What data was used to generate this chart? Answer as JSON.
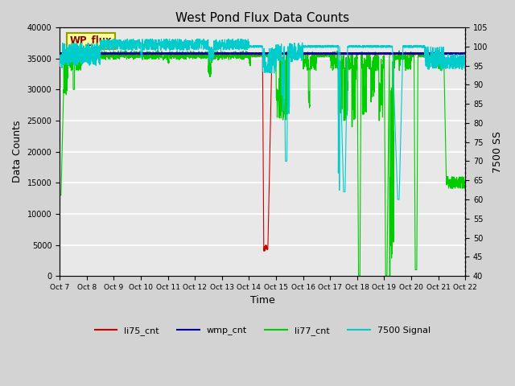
{
  "title": "West Pond Flux Data Counts",
  "xlabel": "Time",
  "ylabel_left": "Data Counts",
  "ylabel_right": "7500 SS",
  "xlim": [
    0,
    15
  ],
  "ylim_left": [
    0,
    40000
  ],
  "ylim_right": [
    40,
    105
  ],
  "yticks_left": [
    0,
    5000,
    10000,
    15000,
    20000,
    25000,
    30000,
    35000,
    40000
  ],
  "yticks_right": [
    40,
    45,
    50,
    55,
    60,
    65,
    70,
    75,
    80,
    85,
    90,
    95,
    100,
    105
  ],
  "xtick_labels": [
    "Oct 7",
    "Oct 8",
    "Oct 9",
    "Oct 10",
    "Oct 11",
    "Oct 12",
    "Oct 13",
    "Oct 14",
    "Oct 15",
    "Oct 16",
    "Oct 17",
    "Oct 18",
    "Oct 19",
    "Oct 20",
    "Oct 21",
    "Oct 22"
  ],
  "legend_labels": [
    "li75_cnt",
    "wmp_cnt",
    "li77_cnt",
    "7500 Signal"
  ],
  "legend_colors": [
    "#cc0000",
    "#0000bb",
    "#00cc00",
    "#00cccc"
  ],
  "wp_flux_box_color": "#ffff99",
  "wp_flux_text_color": "#8b0000",
  "background_color": "#d3d3d3",
  "axes_bg_color": "#e8e8e8"
}
